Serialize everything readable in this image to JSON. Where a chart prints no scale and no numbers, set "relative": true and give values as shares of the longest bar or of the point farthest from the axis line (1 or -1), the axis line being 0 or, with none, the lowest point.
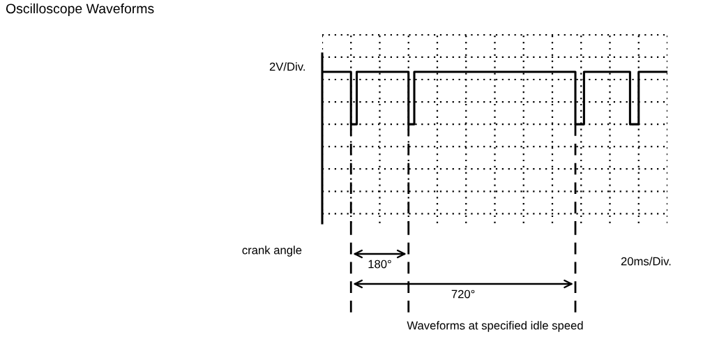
{
  "chart_data": {
    "type": "step",
    "title": "Oscilloscope Waveforms",
    "categories": [
      null,
      null,
      null,
      null,
      null,
      null,
      null,
      null,
      null,
      null,
      null,
      null,
      null,
      null,
      null,
      null,
      null,
      null,
      null,
      null,
      null,
      null,
      null,
      null,
      null,
      null,
      null,
      null,
      null,
      null,
      null,
      null,
      null,
      null,
      null,
      null,
      null,
      null,
      null,
      null,
      null,
      null,
      null,
      null,
      null,
      null,
      null,
      null,
      null,
      null,
      null,
      null,
      null,
      null,
      null,
      null,
      null,
      null,
      null,
      null,
      null,
      null,
      null,
      null,
      null,
      null,
      null,
      null,
      null,
      null,
      null,
      null,
      null,
      null,
      null,
      null,
      null,
      null,
      null,
      null,
      null,
      null,
      null,
      null,
      null,
      null,
      null,
      null,
      null,
      null,
      null,
      null,
      null,
      null,
      null,
      null,
      null,
      null,
      null,
      null,
      null,
      null,
      null,
      null,
      null,
      null,
      null,
      null,
      null,
      null,
      null,
      null,
      null,
      null,
      null,
      null,
      null,
      null,
      null,
      null
    ],
    "values": [
      1,
      1,
      1,
      1,
      1,
      1,
      1,
      1,
      1,
      1,
      0,
      0,
      1,
      1,
      1,
      1,
      1,
      1,
      1,
      1,
      1,
      1,
      1,
      1,
      1,
      1,
      1,
      1,
      1,
      1,
      0,
      0,
      1,
      1,
      1,
      1,
      1,
      1,
      1,
      1,
      1,
      1,
      1,
      1,
      1,
      1,
      1,
      1,
      1,
      1,
      1,
      1,
      1,
      1,
      1,
      1,
      1,
      1,
      1,
      1,
      1,
      1,
      1,
      1,
      1,
      1,
      1,
      1,
      1,
      1,
      1,
      1,
      1,
      1,
      1,
      1,
      1,
      1,
      1,
      1,
      1,
      1,
      1,
      1,
      1,
      1,
      1,
      1,
      0,
      0,
      0,
      1,
      1,
      1,
      1,
      1,
      1,
      1,
      1,
      1,
      1,
      1,
      1,
      1,
      1,
      1,
      1,
      0,
      0,
      0,
      1,
      1,
      1,
      1,
      1,
      1,
      1,
      1,
      1,
      1
    ],
    "color": "#000000",
    "relative": true,
    "grid": true,
    "annotations": [
      "2V/Div.",
      "crank angle",
      "180°",
      "720°",
      "20ms/Div.",
      "Waveforms at specified idle speed"
    ]
  }
}
